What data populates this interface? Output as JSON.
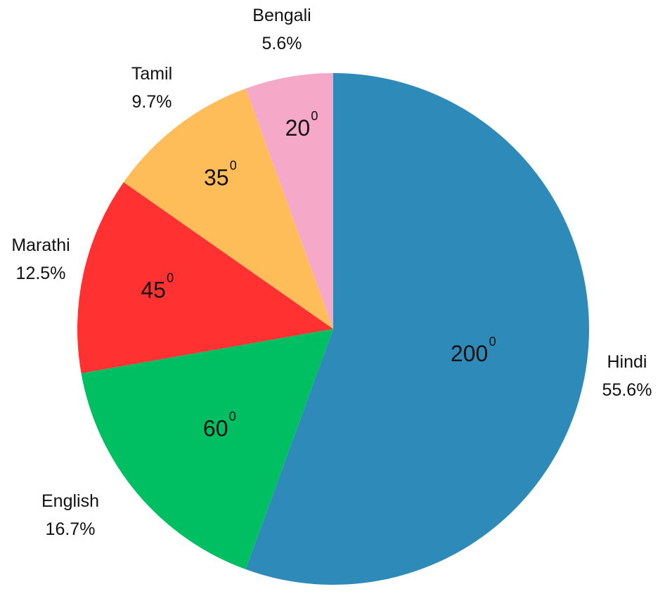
{
  "chart_data": {
    "type": "pie",
    "unit_superscript": "0",
    "slices": [
      {
        "name": "Hindi",
        "value": 200,
        "percent_label": "55.6%",
        "color": "#2E8BB9"
      },
      {
        "name": "English",
        "value": 60,
        "percent_label": "16.7%",
        "color": "#00BF63"
      },
      {
        "name": "Marathi",
        "value": 45,
        "percent_label": "12.5%",
        "color": "#FF3131"
      },
      {
        "name": "Tamil",
        "value": 35,
        "percent_label": "9.7%",
        "color": "#FFBD59"
      },
      {
        "name": "Bengali",
        "value": 20,
        "percent_label": "5.6%",
        "color": "#F6A8C8"
      }
    ]
  }
}
